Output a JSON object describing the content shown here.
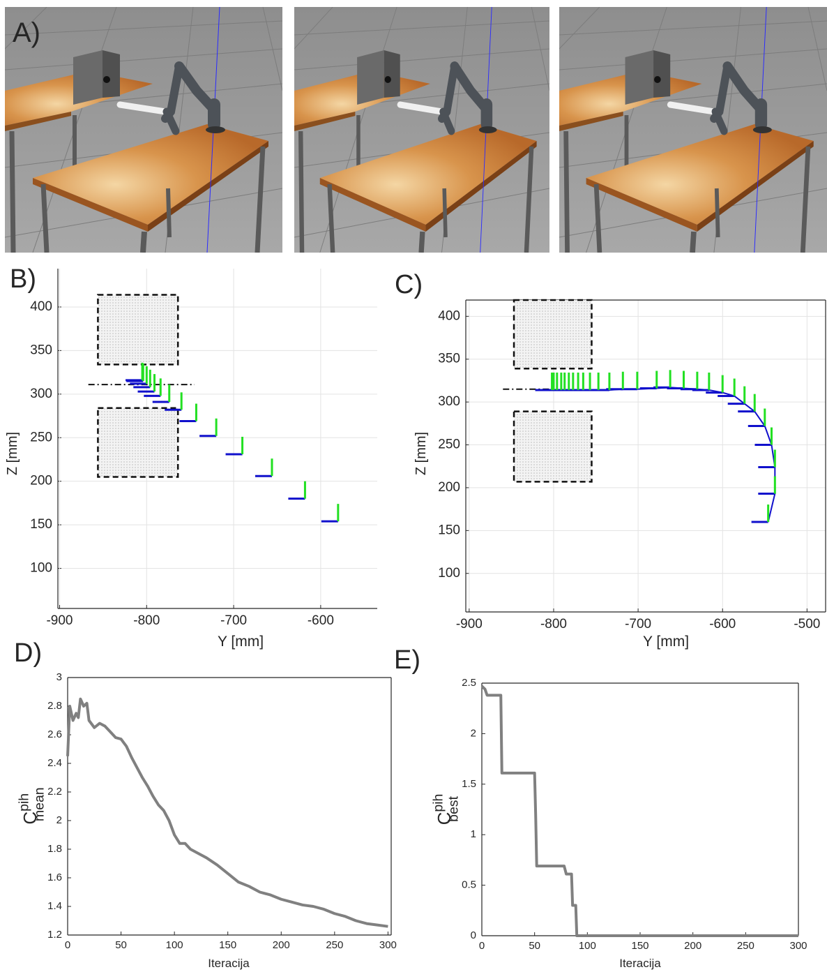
{
  "panel_a": {
    "label": "A)"
  },
  "chart_data": [
    {
      "type": "scatter",
      "label": "B)",
      "xlabel": "Y [mm]",
      "ylabel": "Z [mm]",
      "x": [
        -580,
        -618,
        -656,
        -690,
        -720,
        -743,
        -760,
        -774,
        -784,
        -791,
        -796,
        -800,
        -804,
        -805
      ],
      "values": [
        154,
        180,
        206,
        231,
        252,
        269,
        282,
        291,
        298,
        303,
        308,
        312,
        315,
        316
      ],
      "colors": [
        "#1010cc",
        "#22e022"
      ],
      "xlim": [
        -902,
        -535
      ],
      "ylim": [
        54,
        444
      ],
      "xticks": [
        -900,
        -800,
        -700,
        -600
      ],
      "yticks": [
        100,
        150,
        200,
        250,
        300,
        350,
        400
      ],
      "grid": true,
      "box": false,
      "connect": false,
      "obstacles": [
        {
          "x": [
            -856,
            -764
          ],
          "y": [
            334,
            414
          ]
        },
        {
          "x": [
            -856,
            -764
          ],
          "y": [
            205,
            284
          ]
        }
      ],
      "reference_line": {
        "x": [
          -867,
          -745
        ],
        "y": [
          311,
          311
        ]
      }
    },
    {
      "type": "scatter",
      "label": "C)",
      "xlabel": "Y [mm]",
      "ylabel": "Z [mm]",
      "x": [
        -546,
        -538,
        -538,
        -542,
        -550,
        -562,
        -574,
        -586,
        -600,
        -616,
        -630,
        -646,
        -662,
        -678,
        -701,
        -718,
        -734,
        -747,
        -757,
        -765,
        -771,
        -777,
        -782,
        -787,
        -791,
        -796,
        -800,
        -802
      ],
      "values": [
        160,
        193,
        224,
        250,
        272,
        289,
        298,
        307,
        311,
        314,
        315,
        316,
        317,
        316,
        315,
        315,
        314,
        314,
        314,
        314,
        314,
        314,
        314,
        314,
        314,
        314,
        314,
        314
      ],
      "colors": [
        "#1010cc",
        "#22e022"
      ],
      "xlim": [
        -904,
        -478
      ],
      "ylim": [
        55,
        419
      ],
      "xticks": [
        -900,
        -800,
        -700,
        -600,
        -500
      ],
      "yticks": [
        100,
        150,
        200,
        250,
        300,
        350,
        400
      ],
      "grid": true,
      "box": true,
      "connect": true,
      "obstacles": [
        {
          "x": [
            -847,
            -755
          ],
          "y": [
            339,
            419
          ]
        },
        {
          "x": [
            -847,
            -755
          ],
          "y": [
            207,
            289
          ]
        }
      ],
      "reference_line": {
        "x": [
          -860,
          -804
        ],
        "y": [
          315,
          315
        ]
      }
    },
    {
      "type": "line",
      "label": "D)",
      "xlabel": "Iteracija",
      "ylabel": {
        "text": "C",
        "sup": "pih",
        "sub": "mean"
      },
      "x": [
        0,
        2,
        5,
        8,
        10,
        12,
        15,
        18,
        20,
        25,
        30,
        35,
        40,
        45,
        50,
        55,
        60,
        65,
        70,
        75,
        80,
        85,
        90,
        95,
        100,
        105,
        110,
        115,
        120,
        130,
        140,
        150,
        160,
        170,
        180,
        190,
        200,
        210,
        220,
        230,
        240,
        250,
        260,
        270,
        280,
        290,
        300
      ],
      "values": [
        2.45,
        2.8,
        2.7,
        2.75,
        2.72,
        2.85,
        2.8,
        2.82,
        2.7,
        2.65,
        2.68,
        2.66,
        2.62,
        2.58,
        2.57,
        2.52,
        2.44,
        2.37,
        2.3,
        2.24,
        2.17,
        2.11,
        2.07,
        2.0,
        1.9,
        1.84,
        1.84,
        1.8,
        1.78,
        1.74,
        1.69,
        1.63,
        1.57,
        1.54,
        1.5,
        1.48,
        1.45,
        1.43,
        1.41,
        1.4,
        1.38,
        1.35,
        1.33,
        1.3,
        1.28,
        1.27,
        1.26
      ],
      "color": "#808080",
      "xlim": [
        0,
        303
      ],
      "ylim": [
        1.2,
        3
      ],
      "xticks": [
        0,
        50,
        100,
        150,
        200,
        250,
        300
      ],
      "yticks": [
        1.2,
        1.4,
        1.6,
        1.8,
        2,
        2.2,
        2.4,
        2.6,
        2.8,
        3
      ],
      "grid": false,
      "box": true
    },
    {
      "type": "line",
      "label": "E)",
      "xlabel": "Iteracija",
      "ylabel": {
        "text": "C",
        "sup": "pih",
        "sub": "best"
      },
      "x": [
        0,
        3,
        5,
        18,
        19,
        50,
        51,
        52,
        78,
        80,
        85,
        86,
        89,
        90,
        300
      ],
      "values": [
        2.47,
        2.44,
        2.38,
        2.38,
        1.61,
        1.61,
        1.2,
        0.69,
        0.69,
        0.61,
        0.61,
        0.3,
        0.3,
        0,
        0
      ],
      "color": "#808080",
      "xlim": [
        0,
        300
      ],
      "ylim": [
        0,
        2.5
      ],
      "xticks": [
        0,
        50,
        100,
        150,
        200,
        250,
        300
      ],
      "yticks": [
        0,
        0.5,
        1,
        1.5,
        2,
        2.5
      ],
      "grid": false,
      "box": true
    }
  ]
}
